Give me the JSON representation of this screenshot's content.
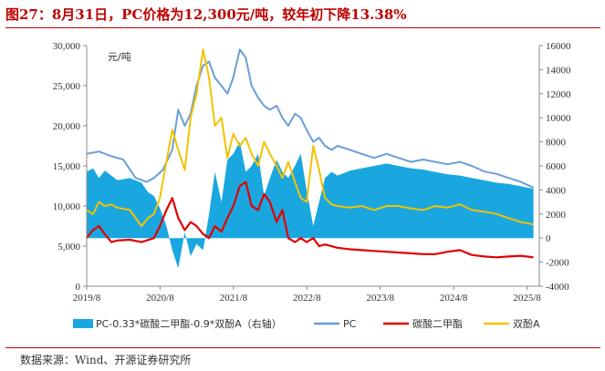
{
  "title": "图27：8月31日，PC价格为12,300元/吨，较年初下降13.38%",
  "source": "数据来源：Wind、开源证券研究所",
  "colors": {
    "title": "#c00000",
    "spread": "#1aa7e0",
    "pc": "#6a9fd6",
    "dmc": "#e00000",
    "bpa": "#f2c200"
  },
  "chart_data": {
    "type": "line",
    "unit_label": "元/吨",
    "left_axis": {
      "min": 0,
      "max": 30000,
      "ticks": [
        "0",
        "5,000",
        "10,000",
        "15,000",
        "20,000",
        "25,000",
        "30,000"
      ]
    },
    "right_axis": {
      "min": -4000,
      "max": 16000,
      "ticks": [
        "-4000",
        "-2000",
        "0",
        "2000",
        "4000",
        "6000",
        "8000",
        "10000",
        "12000",
        "14000",
        "16000"
      ]
    },
    "x_range": [
      2019.5833,
      2025.75
    ],
    "x_ticks": [
      "2019/8",
      "2020/8",
      "2021/8",
      "2022/8",
      "2023/8",
      "2024/8",
      "2025/8"
    ],
    "legend": [
      "PC-0.33*碳酸二甲酯-0.9*双酚A（右轴）",
      "PC",
      "碳酸二甲酯",
      "双酚A"
    ],
    "series": [
      {
        "name": "PC",
        "axis": "left",
        "points": [
          [
            2019.58,
            16500
          ],
          [
            2019.75,
            16800
          ],
          [
            2019.92,
            16200
          ],
          [
            2020.08,
            15800
          ],
          [
            2020.25,
            13500
          ],
          [
            2020.4,
            13000
          ],
          [
            2020.5,
            13500
          ],
          [
            2020.62,
            14500
          ],
          [
            2020.75,
            17000
          ],
          [
            2020.83,
            22000
          ],
          [
            2020.92,
            20000
          ],
          [
            2021.0,
            21500
          ],
          [
            2021.08,
            25000
          ],
          [
            2021.17,
            27500
          ],
          [
            2021.25,
            28000
          ],
          [
            2021.33,
            26000
          ],
          [
            2021.42,
            25000
          ],
          [
            2021.5,
            24000
          ],
          [
            2021.58,
            26000
          ],
          [
            2021.67,
            29500
          ],
          [
            2021.75,
            28500
          ],
          [
            2021.83,
            25000
          ],
          [
            2021.92,
            23500
          ],
          [
            2022.0,
            22500
          ],
          [
            2022.08,
            22000
          ],
          [
            2022.17,
            22500
          ],
          [
            2022.25,
            21000
          ],
          [
            2022.33,
            20000
          ],
          [
            2022.42,
            21500
          ],
          [
            2022.5,
            21000
          ],
          [
            2022.58,
            19500
          ],
          [
            2022.67,
            18000
          ],
          [
            2022.75,
            18500
          ],
          [
            2022.83,
            17500
          ],
          [
            2022.92,
            17000
          ],
          [
            2023.0,
            17500
          ],
          [
            2023.17,
            17000
          ],
          [
            2023.33,
            16500
          ],
          [
            2023.5,
            16000
          ],
          [
            2023.67,
            16500
          ],
          [
            2023.83,
            16000
          ],
          [
            2024.0,
            15500
          ],
          [
            2024.17,
            15800
          ],
          [
            2024.33,
            15500
          ],
          [
            2024.5,
            15200
          ],
          [
            2024.67,
            15500
          ],
          [
            2024.83,
            15000
          ],
          [
            2025.0,
            14300
          ],
          [
            2025.17,
            14000
          ],
          [
            2025.33,
            13500
          ],
          [
            2025.5,
            13000
          ],
          [
            2025.67,
            12300
          ]
        ]
      },
      {
        "name": "碳酸二甲酯",
        "axis": "left",
        "points": [
          [
            2019.58,
            6000
          ],
          [
            2019.67,
            7000
          ],
          [
            2019.75,
            7500
          ],
          [
            2019.83,
            6500
          ],
          [
            2019.92,
            5500
          ],
          [
            2020.0,
            5700
          ],
          [
            2020.17,
            5800
          ],
          [
            2020.33,
            5500
          ],
          [
            2020.5,
            6000
          ],
          [
            2020.58,
            7500
          ],
          [
            2020.67,
            9500
          ],
          [
            2020.75,
            11000
          ],
          [
            2020.83,
            8500
          ],
          [
            2020.92,
            7000
          ],
          [
            2021.0,
            8000
          ],
          [
            2021.08,
            7500
          ],
          [
            2021.17,
            6500
          ],
          [
            2021.25,
            6000
          ],
          [
            2021.33,
            7500
          ],
          [
            2021.42,
            6800
          ],
          [
            2021.5,
            8500
          ],
          [
            2021.58,
            10000
          ],
          [
            2021.67,
            12500
          ],
          [
            2021.75,
            13000
          ],
          [
            2021.83,
            10000
          ],
          [
            2021.92,
            9500
          ],
          [
            2022.0,
            11500
          ],
          [
            2022.08,
            10500
          ],
          [
            2022.17,
            8000
          ],
          [
            2022.25,
            9500
          ],
          [
            2022.33,
            6000
          ],
          [
            2022.42,
            5500
          ],
          [
            2022.5,
            6000
          ],
          [
            2022.58,
            5500
          ],
          [
            2022.67,
            6000
          ],
          [
            2022.75,
            5000
          ],
          [
            2022.83,
            5200
          ],
          [
            2023.0,
            4800
          ],
          [
            2023.17,
            4600
          ],
          [
            2023.33,
            4500
          ],
          [
            2023.5,
            4400
          ],
          [
            2023.67,
            4300
          ],
          [
            2023.83,
            4200
          ],
          [
            2024.0,
            4100
          ],
          [
            2024.17,
            4000
          ],
          [
            2024.33,
            4000
          ],
          [
            2024.5,
            4300
          ],
          [
            2024.67,
            4500
          ],
          [
            2024.83,
            3900
          ],
          [
            2025.0,
            3700
          ],
          [
            2025.17,
            3600
          ],
          [
            2025.33,
            3700
          ],
          [
            2025.5,
            3800
          ],
          [
            2025.67,
            3600
          ]
        ]
      },
      {
        "name": "双酚A",
        "axis": "left",
        "points": [
          [
            2019.58,
            9500
          ],
          [
            2019.67,
            9000
          ],
          [
            2019.75,
            10500
          ],
          [
            2019.83,
            10000
          ],
          [
            2019.92,
            10200
          ],
          [
            2020.0,
            9800
          ],
          [
            2020.17,
            9500
          ],
          [
            2020.33,
            7500
          ],
          [
            2020.42,
            8500
          ],
          [
            2020.5,
            9000
          ],
          [
            2020.58,
            11000
          ],
          [
            2020.67,
            15500
          ],
          [
            2020.75,
            19500
          ],
          [
            2020.83,
            17000
          ],
          [
            2020.92,
            14500
          ],
          [
            2021.0,
            21000
          ],
          [
            2021.08,
            24000
          ],
          [
            2021.17,
            29500
          ],
          [
            2021.25,
            26000
          ],
          [
            2021.33,
            20000
          ],
          [
            2021.42,
            21000
          ],
          [
            2021.5,
            16000
          ],
          [
            2021.58,
            19000
          ],
          [
            2021.67,
            17500
          ],
          [
            2021.75,
            18500
          ],
          [
            2021.83,
            16500
          ],
          [
            2021.92,
            15000
          ],
          [
            2022.0,
            18000
          ],
          [
            2022.08,
            16500
          ],
          [
            2022.17,
            15000
          ],
          [
            2022.25,
            13500
          ],
          [
            2022.33,
            15500
          ],
          [
            2022.42,
            13000
          ],
          [
            2022.5,
            11000
          ],
          [
            2022.58,
            10500
          ],
          [
            2022.67,
            17500
          ],
          [
            2022.75,
            14500
          ],
          [
            2022.83,
            11000
          ],
          [
            2022.92,
            10200
          ],
          [
            2023.0,
            10000
          ],
          [
            2023.17,
            9800
          ],
          [
            2023.33,
            10000
          ],
          [
            2023.5,
            9500
          ],
          [
            2023.67,
            10000
          ],
          [
            2023.83,
            10000
          ],
          [
            2024.0,
            9700
          ],
          [
            2024.17,
            9500
          ],
          [
            2024.33,
            10000
          ],
          [
            2024.5,
            9800
          ],
          [
            2024.67,
            10200
          ],
          [
            2024.83,
            9500
          ],
          [
            2025.0,
            9300
          ],
          [
            2025.17,
            9000
          ],
          [
            2025.33,
            8500
          ],
          [
            2025.5,
            8000
          ],
          [
            2025.67,
            7700
          ]
        ]
      },
      {
        "name": "PC-0.33*碳酸二甲酯-0.9*双酚A（右轴）",
        "axis": "right",
        "points": [
          [
            2019.58,
            5500
          ],
          [
            2019.67,
            5800
          ],
          [
            2019.75,
            5000
          ],
          [
            2019.83,
            5600
          ],
          [
            2019.92,
            5200
          ],
          [
            2020.0,
            4800
          ],
          [
            2020.17,
            5000
          ],
          [
            2020.33,
            4600
          ],
          [
            2020.42,
            3800
          ],
          [
            2020.5,
            3500
          ],
          [
            2020.58,
            2500
          ],
          [
            2020.67,
            1000
          ],
          [
            2020.75,
            -1000
          ],
          [
            2020.83,
            -2500
          ],
          [
            2020.92,
            500
          ],
          [
            2021.0,
            -1500
          ],
          [
            2021.08,
            -500
          ],
          [
            2021.17,
            -1000
          ],
          [
            2021.25,
            2000
          ],
          [
            2021.33,
            5500
          ],
          [
            2021.42,
            3000
          ],
          [
            2021.5,
            6500
          ],
          [
            2021.58,
            7000
          ],
          [
            2021.67,
            8000
          ],
          [
            2021.75,
            5500
          ],
          [
            2021.83,
            6000
          ],
          [
            2021.92,
            7000
          ],
          [
            2022.0,
            3500
          ],
          [
            2022.08,
            5000
          ],
          [
            2022.17,
            6500
          ],
          [
            2022.25,
            5500
          ],
          [
            2022.33,
            5000
          ],
          [
            2022.42,
            6000
          ],
          [
            2022.5,
            7000
          ],
          [
            2022.58,
            4000
          ],
          [
            2022.67,
            1000
          ],
          [
            2022.75,
            3000
          ],
          [
            2022.83,
            5000
          ],
          [
            2022.92,
            5500
          ],
          [
            2023.0,
            5200
          ],
          [
            2023.17,
            5600
          ],
          [
            2023.33,
            5800
          ],
          [
            2023.5,
            6000
          ],
          [
            2023.67,
            6200
          ],
          [
            2023.83,
            6000
          ],
          [
            2024.0,
            5800
          ],
          [
            2024.17,
            5700
          ],
          [
            2024.33,
            5500
          ],
          [
            2024.5,
            5300
          ],
          [
            2024.67,
            5200
          ],
          [
            2024.83,
            5000
          ],
          [
            2025.0,
            4800
          ],
          [
            2025.17,
            4600
          ],
          [
            2025.33,
            4500
          ],
          [
            2025.5,
            4300
          ],
          [
            2025.67,
            4100
          ]
        ]
      }
    ]
  }
}
